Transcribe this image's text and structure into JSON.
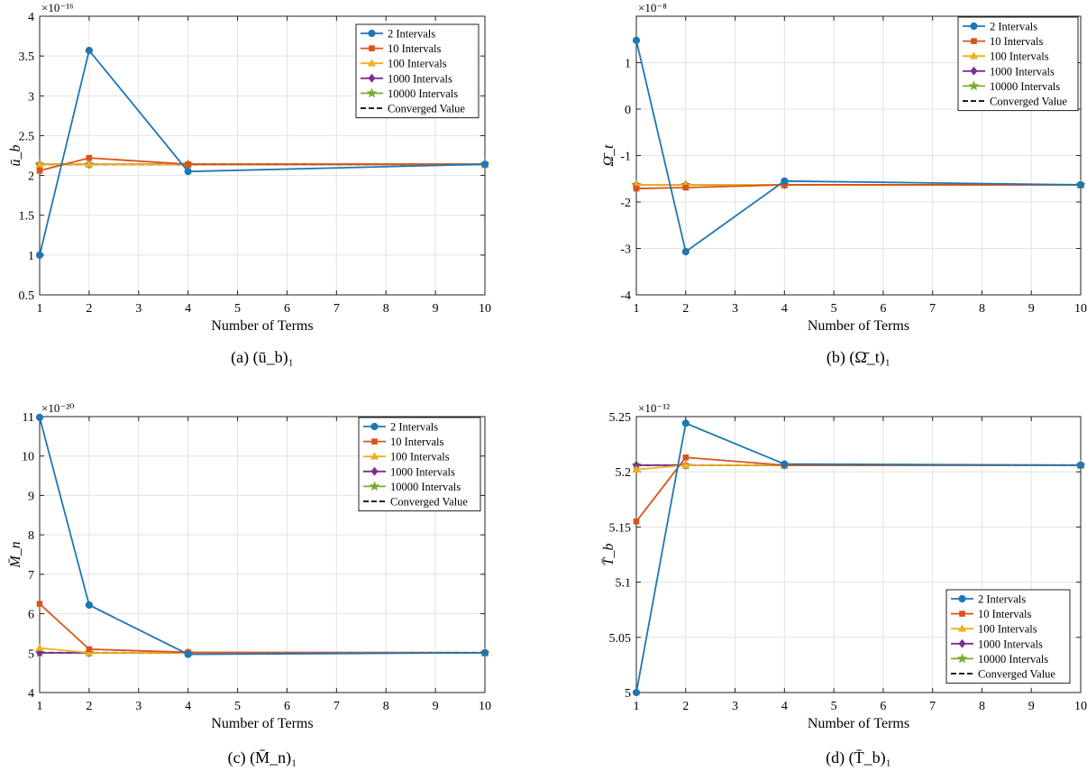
{
  "chart_data": [
    {
      "type": "line",
      "caption": "(a) (ū_b)₁",
      "ylabel": "ū_b",
      "xlabel": "Number of Terms",
      "y_scale_label": "×10⁻¹⁶",
      "xlim": [
        1,
        10
      ],
      "ylim": [
        0.5,
        4
      ],
      "xticks": [
        1,
        2,
        3,
        4,
        5,
        6,
        7,
        8,
        9,
        10
      ],
      "yticks": [
        0.5,
        1,
        1.5,
        2,
        2.5,
        3,
        3.5,
        4
      ],
      "ytick_labels": [
        "0.5",
        "1",
        "1.5",
        "2",
        "2.5",
        "3",
        "3.5",
        "4"
      ],
      "x": [
        1,
        2,
        4,
        10
      ],
      "grid": true,
      "legend_position": "top-right",
      "series": [
        {
          "name": "2 Intervals",
          "values": [
            1.0,
            3.57,
            2.05,
            2.14
          ]
        },
        {
          "name": "10 Intervals",
          "values": [
            2.06,
            2.22,
            2.14,
            2.14
          ]
        },
        {
          "name": "100 Intervals",
          "values": [
            2.14,
            2.14,
            2.14,
            2.14
          ]
        },
        {
          "name": "1000 Intervals",
          "values": [
            2.14,
            2.14,
            2.14,
            2.14
          ]
        },
        {
          "name": "10000 Intervals",
          "values": [
            2.14,
            2.14,
            2.14,
            2.14
          ]
        },
        {
          "name": "Converged Value",
          "values": [
            2.14,
            2.14,
            2.14,
            2.14
          ]
        }
      ]
    },
    {
      "type": "line",
      "caption": "(b) (Ω̄_t)₁",
      "ylabel": "Ω̄_t",
      "xlabel": "Number of Terms",
      "y_scale_label": "×10⁻⁸",
      "xlim": [
        1,
        10
      ],
      "ylim": [
        -4,
        2
      ],
      "xticks": [
        1,
        2,
        3,
        4,
        5,
        6,
        7,
        8,
        9,
        10
      ],
      "yticks": [
        -4,
        -3,
        -2,
        -1,
        0,
        1
      ],
      "ytick_labels": [
        "-4",
        "-3",
        "-2",
        "-1",
        "0",
        "1"
      ],
      "x": [
        1,
        2,
        4,
        10
      ],
      "grid": true,
      "legend_position": "top-right",
      "series": [
        {
          "name": "2 Intervals",
          "values": [
            1.48,
            -3.07,
            -1.55,
            -1.63
          ]
        },
        {
          "name": "10 Intervals",
          "values": [
            -1.71,
            -1.69,
            -1.63,
            -1.63
          ]
        },
        {
          "name": "100 Intervals",
          "values": [
            -1.63,
            -1.63,
            -1.63,
            -1.63
          ]
        },
        {
          "name": "1000 Intervals",
          "values": [
            -1.63,
            -1.63,
            -1.63,
            -1.63
          ]
        },
        {
          "name": "10000 Intervals",
          "values": [
            -1.63,
            -1.63,
            -1.63,
            -1.63
          ]
        },
        {
          "name": "Converged Value",
          "values": [
            -1.63,
            -1.63,
            -1.63,
            -1.63
          ]
        }
      ]
    },
    {
      "type": "line",
      "caption": "(c) (M̄_n)₁",
      "ylabel": "M̄_n",
      "xlabel": "Number of Terms",
      "y_scale_label": "×10⁻²⁰",
      "xlim": [
        1,
        10
      ],
      "ylim": [
        4,
        11
      ],
      "xticks": [
        1,
        2,
        3,
        4,
        5,
        6,
        7,
        8,
        9,
        10
      ],
      "yticks": [
        4,
        5,
        6,
        7,
        8,
        9,
        10,
        11
      ],
      "ytick_labels": [
        "4",
        "5",
        "6",
        "7",
        "8",
        "9",
        "10",
        "11"
      ],
      "x": [
        1,
        2,
        4,
        10
      ],
      "grid": true,
      "legend_position": "top-right",
      "series": [
        {
          "name": "2 Intervals",
          "values": [
            10.98,
            6.22,
            4.97,
            5.01
          ]
        },
        {
          "name": "10 Intervals",
          "values": [
            6.25,
            5.1,
            5.02,
            5.01
          ]
        },
        {
          "name": "100 Intervals",
          "values": [
            5.13,
            5.01,
            5.01,
            5.01
          ]
        },
        {
          "name": "1000 Intervals",
          "values": [
            5.01,
            5.01,
            5.01,
            5.01
          ]
        },
        {
          "name": "10000 Intervals",
          "values": [
            5.01,
            5.01,
            5.01,
            5.01
          ]
        },
        {
          "name": "Converged Value",
          "values": [
            5.01,
            5.01,
            5.01,
            5.01
          ]
        }
      ]
    },
    {
      "type": "line",
      "caption": "(d) (T̄_b)₁",
      "ylabel": "T̄_b",
      "xlabel": "Number of Terms",
      "y_scale_label": "×10⁻¹²",
      "xlim": [
        1,
        10
      ],
      "ylim": [
        5,
        5.25
      ],
      "xticks": [
        1,
        2,
        3,
        4,
        5,
        6,
        7,
        8,
        9,
        10
      ],
      "yticks": [
        5,
        5.05,
        5.1,
        5.15,
        5.2,
        5.25
      ],
      "ytick_labels": [
        "5",
        "5.05",
        "5.1",
        "5.15",
        "5.2",
        "5.25"
      ],
      "x": [
        1,
        2,
        4,
        10
      ],
      "grid": true,
      "legend_position": "bottom-right",
      "series": [
        {
          "name": "2 Intervals",
          "values": [
            5.0,
            5.244,
            5.207,
            5.206
          ]
        },
        {
          "name": "10 Intervals",
          "values": [
            5.155,
            5.213,
            5.206,
            5.206
          ]
        },
        {
          "name": "100 Intervals",
          "values": [
            5.202,
            5.206,
            5.206,
            5.206
          ]
        },
        {
          "name": "1000 Intervals",
          "values": [
            5.206,
            5.206,
            5.206,
            5.206
          ]
        },
        {
          "name": "10000 Intervals",
          "values": [
            5.206,
            5.206,
            5.206,
            5.206
          ]
        },
        {
          "name": "Converged Value",
          "values": [
            5.206,
            5.206,
            5.206,
            5.206
          ]
        }
      ]
    }
  ],
  "series_style": [
    {
      "color": "#1f77b4",
      "marker": "circle",
      "dash": false
    },
    {
      "color": "#d9541a",
      "marker": "square",
      "dash": false
    },
    {
      "color": "#edb120",
      "marker": "triangle",
      "dash": false
    },
    {
      "color": "#7e2f8e",
      "marker": "diamond",
      "dash": false
    },
    {
      "color": "#77ac30",
      "marker": "star",
      "dash": false
    },
    {
      "color": "#000000",
      "marker": "none",
      "dash": true
    }
  ]
}
